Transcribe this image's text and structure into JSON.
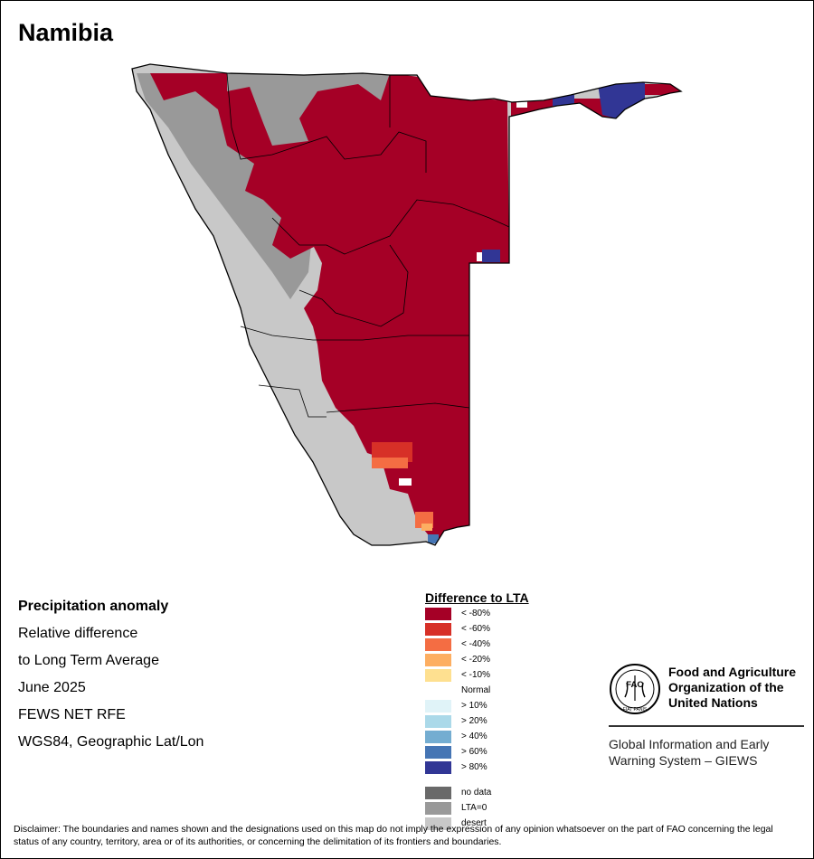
{
  "map": {
    "title": "Namibia"
  },
  "info": {
    "lines": [
      "Precipitation anomaly",
      "Relative difference",
      "to Long Term Average",
      "June 2025",
      "FEWS NET RFE",
      "WGS84, Geographic Lat/Lon"
    ]
  },
  "legend": {
    "title": "Difference to LTA",
    "classes": [
      {
        "label": "< -80%",
        "color": "#a50026"
      },
      {
        "label": "< -60%",
        "color": "#d73027"
      },
      {
        "label": "< -40%",
        "color": "#f46d43"
      },
      {
        "label": "< -20%",
        "color": "#fdae61"
      },
      {
        "label": "< -10%",
        "color": "#fee090"
      },
      {
        "label": "Normal",
        "color": "#ffffff"
      },
      {
        "label": "> 10%",
        "color": "#e0f3f8"
      },
      {
        "label": "> 20%",
        "color": "#abd9e9"
      },
      {
        "label": "> 40%",
        "color": "#74add1"
      },
      {
        "label": "> 60%",
        "color": "#4575b4"
      },
      {
        "label": "> 80%",
        "color": "#313695"
      }
    ],
    "special": [
      {
        "label": "no data",
        "color": "#696969"
      },
      {
        "label": "LTA=0",
        "color": "#999999"
      },
      {
        "label": "desert",
        "color": "#c8c8c8"
      }
    ]
  },
  "fao": {
    "org_name": [
      "Food and Agriculture",
      "Organization of the",
      "United Nations"
    ],
    "emblem_text": "FAO",
    "emblem_motto": "FIAT PANIS",
    "system_name": [
      "Global Information and Early",
      "Warning System – GIEWS"
    ]
  },
  "disclaimer": "Disclaimer: The boundaries and names shown and the designations used on this map do not imply the expression of any opinion whatsoever on the part of FAO concerning the legal status of any country, territory, area or of its authorities, or concerning the delimitation of its frontiers and boundaries.",
  "colors": {
    "deficit": "#a50026",
    "border": "#000000"
  }
}
